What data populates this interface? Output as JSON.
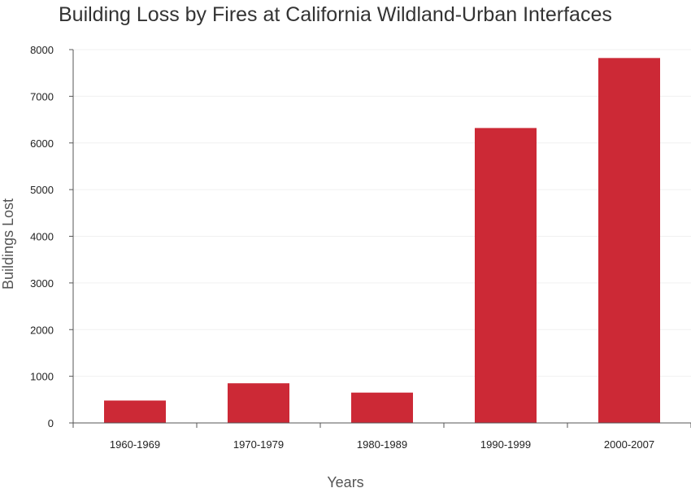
{
  "chart_data": {
    "type": "bar",
    "title": "Building Loss by Fires at California Wildland-Urban Interfaces",
    "xlabel": "Years",
    "ylabel": "Buildings Lost",
    "categories": [
      "1960-1969",
      "1970-1979",
      "1980-1989",
      "1990-1999",
      "2000-2007"
    ],
    "values": [
      480,
      850,
      650,
      6320,
      7820
    ],
    "ylim": [
      0,
      8000
    ],
    "yticks": [
      0,
      1000,
      2000,
      3000,
      4000,
      5000,
      6000,
      7000,
      8000
    ],
    "grid": true,
    "legend": "none",
    "bar_color": "#cc2936"
  }
}
